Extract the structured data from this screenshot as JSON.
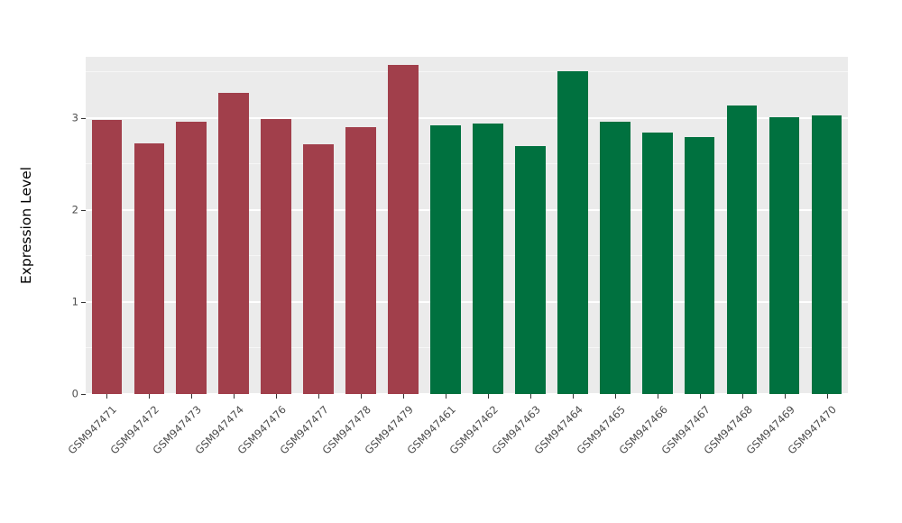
{
  "figure": {
    "background": "#FFFFFF",
    "panel_background": "#EBEBEB",
    "gridline_color": "#FFFFFF",
    "axis_text_color": "#4D4D4D",
    "tick_color": "#333333"
  },
  "chart_data": {
    "type": "bar",
    "title": "",
    "xlabel": "",
    "ylabel": "Expression Level",
    "ylim": [
      0,
      3.67
    ],
    "yticks": [
      0,
      1,
      2,
      3
    ],
    "yticks_minor": [
      0.5,
      1.5,
      2.5,
      3.5
    ],
    "grid": true,
    "legend_position": "none",
    "categories": [
      "GSM947471",
      "GSM947472",
      "GSM947473",
      "GSM947474",
      "GSM947476",
      "GSM947477",
      "GSM947478",
      "GSM947479",
      "GSM947461",
      "GSM947462",
      "GSM947463",
      "GSM947464",
      "GSM947465",
      "GSM947466",
      "GSM947467",
      "GSM947468",
      "GSM947469",
      "GSM947470"
    ],
    "values": [
      2.98,
      2.73,
      2.96,
      3.28,
      2.99,
      2.72,
      2.9,
      3.58,
      2.92,
      2.94,
      2.7,
      3.51,
      2.96,
      2.85,
      2.8,
      3.14,
      3.01,
      3.03
    ],
    "bar_colors": [
      "#A13F4B",
      "#A13F4B",
      "#A13F4B",
      "#A13F4B",
      "#A13F4B",
      "#A13F4B",
      "#A13F4B",
      "#A13F4B",
      "#00713F",
      "#00713F",
      "#00713F",
      "#00713F",
      "#00713F",
      "#00713F",
      "#00713F",
      "#00713F",
      "#00713F",
      "#00713F"
    ],
    "groups": [
      {
        "name": "group-red",
        "color": "#A13F4B",
        "count": 8
      },
      {
        "name": "group-green",
        "color": "#00713F",
        "count": 10
      }
    ]
  }
}
